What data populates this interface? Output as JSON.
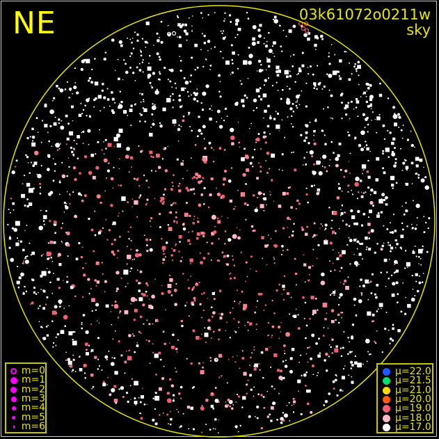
{
  "header": {
    "direction": "NE",
    "frame_id": "03k61072o0211w",
    "view": "sky"
  },
  "colors": {
    "frame": "#e6e600",
    "text": "#e6e600",
    "magnitude_marker": "#ff00ff",
    "background": "#000000"
  },
  "magnitude_legend": [
    {
      "label": "m=0",
      "filled": false
    },
    {
      "label": "m=1",
      "filled": true
    },
    {
      "label": "m=2",
      "filled": true
    },
    {
      "label": "m=3",
      "filled": true
    },
    {
      "label": "m=4",
      "filled": true
    },
    {
      "label": "m=5",
      "filled": true
    },
    {
      "label": "m=6",
      "filled": true
    }
  ],
  "surface_brightness_legend": [
    {
      "label": "μ=22.0",
      "color": "#1a5cff"
    },
    {
      "label": "μ=21.5",
      "color": "#00e070"
    },
    {
      "label": "μ=21.0",
      "color": "#ffd800"
    },
    {
      "label": "μ=20.0",
      "color": "#ff5a10"
    },
    {
      "label": "μ=19.0",
      "color": "#f06070"
    },
    {
      "label": "μ=18.0",
      "color": "#ffb8c8"
    },
    {
      "label": "μ=17.0",
      "color": "#ffffff"
    }
  ]
}
